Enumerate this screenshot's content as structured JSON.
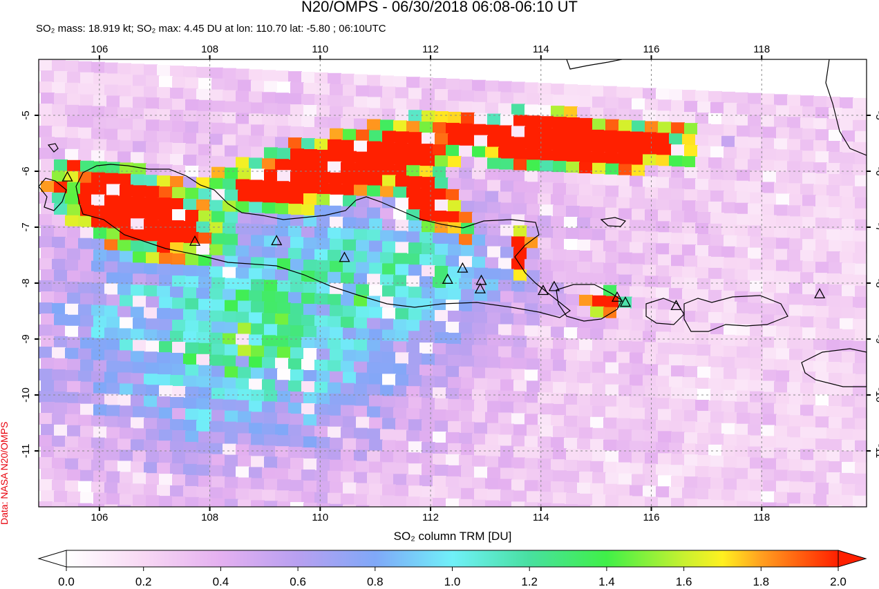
{
  "header": {
    "title": "N20/OMPS - 06/30/2018 06:08-06:10 UT",
    "subtitle": "SO₂ mass: 18.919 kt; SO₂ max: 4.45 DU at lon: 110.70 lat: -5.80 ; 06:10UTC"
  },
  "credit": "Data: NASA N20/OMPS",
  "map": {
    "lon_ticks": [
      "106",
      "108",
      "110",
      "112",
      "114",
      "116",
      "118"
    ],
    "lat_ticks": [
      "-5",
      "-6",
      "-7",
      "-8",
      "-9",
      "-10",
      "-11"
    ],
    "lon_range": [
      104.9,
      119.9
    ],
    "lat_range": [
      -4.0,
      -12.0
    ],
    "gridlines": true,
    "colors": {
      "coast": "#000000",
      "grid": "#888888",
      "plume": "#ff2a00"
    },
    "volcano_marker": "triangle-icon",
    "volcanoes": [
      {
        "lon": 105.42,
        "lat": -6.1
      },
      {
        "lon": 107.73,
        "lat": -7.25
      },
      {
        "lon": 109.21,
        "lat": -7.24
      },
      {
        "lon": 110.44,
        "lat": -7.54
      },
      {
        "lon": 112.31,
        "lat": -7.93
      },
      {
        "lon": 112.58,
        "lat": -7.73
      },
      {
        "lon": 112.92,
        "lat": -7.95
      },
      {
        "lon": 112.9,
        "lat": -8.1
      },
      {
        "lon": 114.04,
        "lat": -8.13
      },
      {
        "lon": 114.24,
        "lat": -8.06
      },
      {
        "lon": 115.38,
        "lat": -8.25
      },
      {
        "lon": 115.53,
        "lat": -8.34
      },
      {
        "lon": 116.45,
        "lat": -8.4
      },
      {
        "lon": 119.05,
        "lat": -8.19
      }
    ]
  },
  "colorbar": {
    "title": "SO₂ column TRM [DU]",
    "ticks": [
      "0.0",
      "0.2",
      "0.4",
      "0.6",
      "0.8",
      "1.0",
      "1.2",
      "1.4",
      "1.6",
      "1.8",
      "2.0"
    ],
    "range": [
      0.0,
      2.0
    ],
    "stops": [
      {
        "v": 0.0,
        "c": "#ffffff"
      },
      {
        "v": 0.2,
        "c": "#f8d8f4"
      },
      {
        "v": 0.4,
        "c": "#e4b0f0"
      },
      {
        "v": 0.6,
        "c": "#b8a0f0"
      },
      {
        "v": 0.8,
        "c": "#80a8f8"
      },
      {
        "v": 1.0,
        "c": "#70f0f8"
      },
      {
        "v": 1.2,
        "c": "#48e0a0"
      },
      {
        "v": 1.4,
        "c": "#40f048"
      },
      {
        "v": 1.6,
        "c": "#c8f030"
      },
      {
        "v": 1.7,
        "c": "#fff020"
      },
      {
        "v": 1.8,
        "c": "#ffa020"
      },
      {
        "v": 2.0,
        "c": "#ff2000"
      }
    ]
  }
}
